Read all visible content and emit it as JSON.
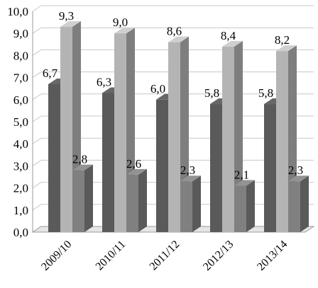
{
  "chart_data": {
    "type": "bar",
    "categories": [
      "2009/10",
      "2010/11",
      "2011/12",
      "2012/13",
      "2013/14"
    ],
    "series": [
      {
        "values": [
          6.7,
          6.3,
          6.0,
          5.8,
          5.8
        ],
        "labels": [
          "6,7",
          "6,3",
          "6,0",
          "5,8",
          "5,8"
        ],
        "color": "#5a5a5a"
      },
      {
        "values": [
          9.3,
          9.0,
          8.6,
          8.4,
          8.2
        ],
        "labels": [
          "9,3",
          "9,0",
          "8,6",
          "8,4",
          "8,2"
        ],
        "color": "#b4b4b4"
      },
      {
        "values": [
          2.8,
          2.6,
          2.3,
          2.1,
          2.3
        ],
        "labels": [
          "2,8",
          "2,6",
          "2,3",
          "2,1",
          "2,3"
        ],
        "color": "#808080"
      }
    ],
    "ylim": [
      0,
      10
    ],
    "yticks": [
      "0,0",
      "1,0",
      "2,0",
      "3,0",
      "4,0",
      "5,0",
      "6,0",
      "7,0",
      "8,0",
      "9,0",
      "10,0"
    ],
    "grid": true,
    "style": "3d"
  }
}
